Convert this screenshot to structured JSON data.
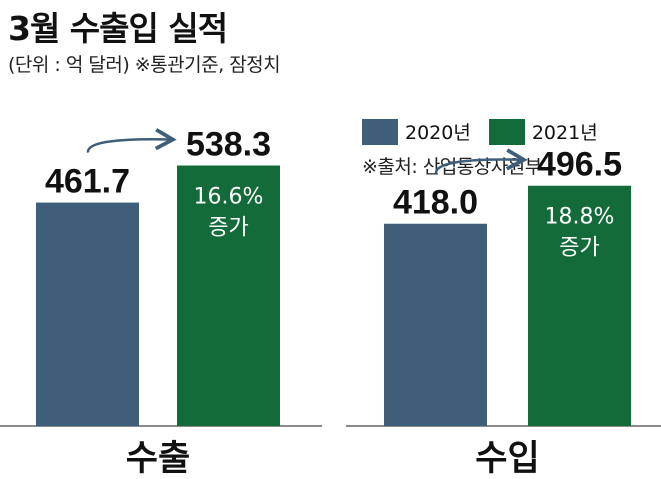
{
  "title": "3월 수출입 실적",
  "subtitle": "(단위 : 억 달러)  ※통관기준, 잠정치",
  "source": "※출처: 산업통상자원부",
  "colors": {
    "y2020": "#3f5e7a",
    "y2021": "#146b3a",
    "axis": "#8a8a8a",
    "arrow": "#3f5e7a"
  },
  "chart_data": {
    "type": "bar",
    "title": "3월 수출입 실적",
    "unit": "억 달러",
    "legend": [
      "2020년",
      "2021년"
    ],
    "legend_position": "top-right",
    "groups": [
      {
        "label": "수출",
        "values": [
          461.7,
          538.3
        ],
        "value_labels": [
          "461.7",
          "538.3"
        ],
        "change_lines": [
          "16.6%",
          "증가"
        ]
      },
      {
        "label": "수입",
        "values": [
          418.0,
          496.5
        ],
        "value_labels": [
          "418.0",
          "496.5"
        ],
        "change_lines": [
          "18.8%",
          "증가"
        ]
      }
    ],
    "series": [
      {
        "name": "2020년",
        "values": [
          461.7,
          418.0
        ]
      },
      {
        "name": "2021년",
        "values": [
          538.3,
          496.5
        ]
      }
    ],
    "ylim": [
      0,
      700
    ],
    "grid": false
  }
}
